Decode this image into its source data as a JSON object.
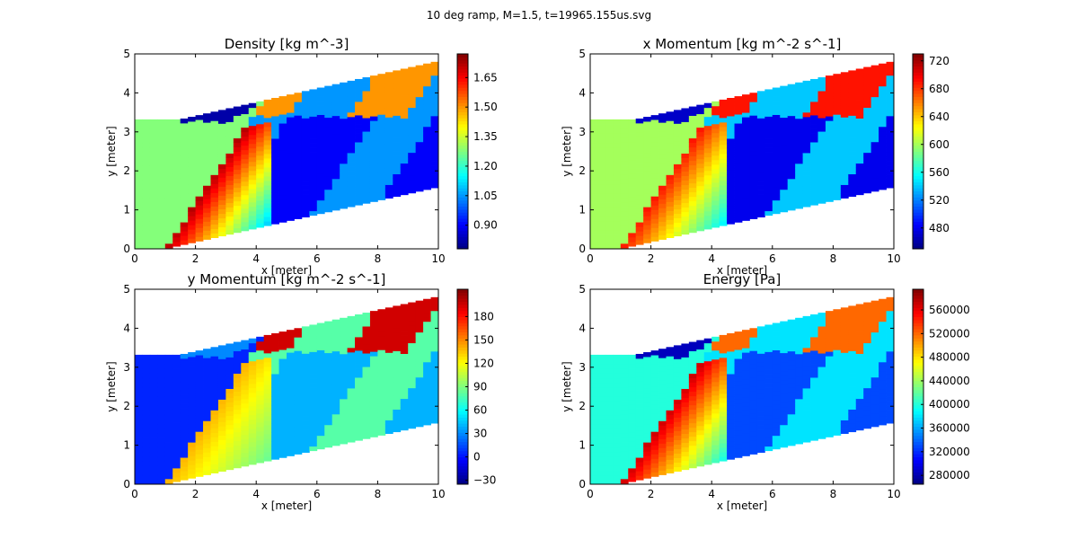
{
  "figure_title": "10 deg ramp, M=1.5, t=19965.155us.svg",
  "colormap": [
    "#00007f",
    "#0000ff",
    "#007fff",
    "#00ffff",
    "#7fff7f",
    "#ffff00",
    "#ff7f00",
    "#ff0000",
    "#7f0000"
  ],
  "chart_data": [
    {
      "type": "heatmap",
      "title": "Density [kg m^-3]",
      "xlabel": "x [meter]",
      "ylabel": "y [meter]",
      "xlim": [
        0,
        10
      ],
      "ylim": [
        0,
        5
      ],
      "xticks": [
        "0",
        "2",
        "4",
        "6",
        "8",
        "10"
      ],
      "yticks": [
        "0",
        "1",
        "2",
        "3",
        "4",
        "5"
      ],
      "colorbar": {
        "min": 0.78,
        "max": 1.77,
        "ticks": [
          "0.90",
          "1.05",
          "1.20",
          "1.35",
          "1.50",
          "1.65"
        ],
        "tick_values": [
          0.9,
          1.05,
          1.2,
          1.35,
          1.5,
          1.65
        ]
      },
      "regions": {
        "inflow": 1.28,
        "pre_shock_wall": 1.72,
        "post_expansion": 0.82,
        "reflected": 1.5,
        "downstream_low": 0.9,
        "downstream_mid": 1.05
      }
    },
    {
      "type": "heatmap",
      "title": "x Momentum [kg m^-2 s^-1]",
      "xlabel": "x [meter]",
      "ylabel": "y [meter]",
      "xlim": [
        0,
        10
      ],
      "ylim": [
        0,
        5
      ],
      "xticks": [
        "0",
        "2",
        "4",
        "6",
        "8",
        "10"
      ],
      "yticks": [
        "0",
        "1",
        "2",
        "3",
        "4",
        "5"
      ],
      "colorbar": {
        "min": 450,
        "max": 730,
        "ticks": [
          "480",
          "520",
          "560",
          "600",
          "640",
          "680",
          "720"
        ],
        "tick_values": [
          480,
          520,
          560,
          600,
          640,
          680,
          720
        ]
      },
      "regions": {
        "inflow": 600,
        "pre_shock_wall": 690,
        "post_expansion": 470,
        "reflected": 690,
        "downstream_low": 480,
        "downstream_mid": 540
      }
    },
    {
      "type": "heatmap",
      "title": "y Momentum [kg m^-2 s^-1]",
      "xlabel": "x [meter]",
      "ylabel": "y [meter]",
      "xlim": [
        0,
        10
      ],
      "ylim": [
        0,
        5
      ],
      "xticks": [
        "0",
        "2",
        "4",
        "6",
        "8",
        "10"
      ],
      "yticks": [
        "0",
        "1",
        "2",
        "3",
        "4",
        "5"
      ],
      "colorbar": {
        "min": -35,
        "max": 215,
        "ticks": [
          "−30",
          "0",
          "30",
          "60",
          "90",
          "120",
          "150",
          "180"
        ],
        "tick_values": [
          -30,
          0,
          30,
          60,
          90,
          120,
          150,
          180
        ]
      },
      "regions": {
        "inflow": 5,
        "pre_shock_wall": 140,
        "post_expansion": 30,
        "reflected": 195,
        "downstream_low": 40,
        "downstream_mid": 80
      }
    },
    {
      "type": "heatmap",
      "title": "Energy [Pa]",
      "xlabel": "x [meter]",
      "ylabel": "y [meter]",
      "xlim": [
        0,
        10
      ],
      "ylim": [
        0,
        5
      ],
      "xticks": [
        "0",
        "2",
        "4",
        "6",
        "8",
        "10"
      ],
      "yticks": [
        "0",
        "1",
        "2",
        "3",
        "4",
        "5"
      ],
      "colorbar": {
        "min": 265000,
        "max": 595000,
        "ticks": [
          "280000",
          "320000",
          "360000",
          "400000",
          "440000",
          "480000",
          "520000",
          "560000"
        ],
        "tick_values": [
          280000,
          320000,
          360000,
          400000,
          440000,
          480000,
          520000,
          560000
        ]
      },
      "regions": {
        "inflow": 400000,
        "pre_shock_wall": 570000,
        "post_expansion": 285000,
        "reflected": 520000,
        "downstream_low": 330000,
        "downstream_mid": 380000
      }
    }
  ]
}
